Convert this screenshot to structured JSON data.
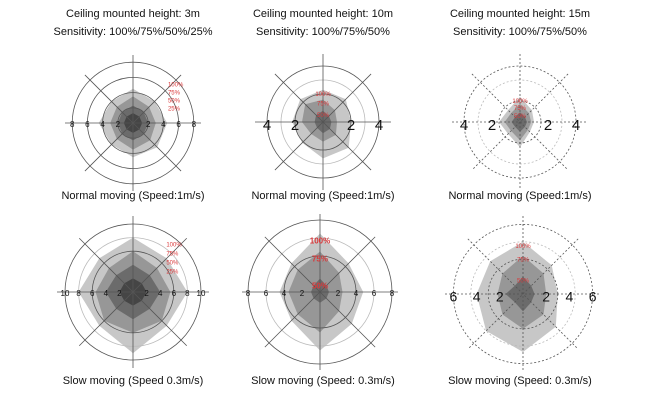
{
  "panels": [
    {
      "title": "Ceiling mounted height: 3m",
      "sensitivity": "Sensitivity: 100%/75%/50%/25%",
      "caption": "Normal moving (Speed:1m/s)",
      "ticks": [
        2,
        4,
        6,
        8
      ],
      "rings": [
        2,
        4,
        6,
        8
      ],
      "dotted": false,
      "labels_pos": "side",
      "levels": [
        {
          "label": "100%",
          "values": [
            4.5,
            4,
            4.5,
            4.5,
            4.5,
            4,
            4.5,
            4
          ]
        },
        {
          "label": "75%",
          "values": [
            3.5,
            3,
            3,
            3.2,
            3.5,
            3,
            3,
            3
          ]
        },
        {
          "label": "50%",
          "values": [
            2.3,
            2,
            2,
            2,
            2.3,
            2,
            2,
            2
          ]
        },
        {
          "label": "25%",
          "values": [
            1.3,
            1.2,
            1.2,
            1.2,
            1.3,
            1.2,
            1.2,
            1.2
          ]
        }
      ]
    },
    {
      "title": "Ceiling mounted height: 10m",
      "sensitivity": "Sensitivity: 100%/75%/50%",
      "caption": "Normal moving (Speed:1m/s)",
      "ticks": [
        2,
        4
      ],
      "rings": [
        2,
        3,
        4
      ],
      "dotted": false,
      "labels_pos": "axis",
      "levels": [
        {
          "label": "100%",
          "values": [
            2.3,
            2.3,
            2,
            2.6,
            2.6,
            2.1,
            2.2,
            2.3
          ]
        },
        {
          "label": "75%",
          "values": [
            1.6,
            1.2,
            1,
            1.3,
            1.4,
            1.2,
            1.5,
            1.8
          ]
        },
        {
          "label": "50%",
          "values": [
            0.8,
            0.6,
            0.6,
            0.7,
            0.8,
            0.6,
            0.6,
            0.7
          ]
        }
      ]
    },
    {
      "title": "Ceiling mounted height: 15m",
      "sensitivity": "Sensitivity: 100%/75%/50%",
      "caption": "Normal moving (Speed:1m/s)",
      "ticks": [
        2,
        4
      ],
      "rings": [
        1.5,
        3,
        4
      ],
      "dotted": true,
      "labels_pos": "axis",
      "levels": [
        {
          "label": "100%",
          "values": [
            1.8,
            1.2,
            1,
            1,
            1.8,
            1.2,
            1.5,
            1.2
          ]
        },
        {
          "label": "75%",
          "values": [
            1.3,
            0.9,
            0.8,
            0.8,
            1.3,
            0.9,
            1.1,
            0.9
          ]
        },
        {
          "label": "50%",
          "values": [
            0.7,
            0.5,
            0.5,
            0.5,
            0.7,
            0.5,
            0.6,
            0.5
          ]
        }
      ]
    },
    {
      "title": "",
      "sensitivity": "",
      "caption": "Slow moving (Speed 0.3m/s)",
      "ticks": [
        2,
        4,
        6,
        8,
        10
      ],
      "rings": [
        6,
        8,
        10
      ],
      "dotted": false,
      "labels_pos": "side",
      "levels": [
        {
          "label": "100%",
          "values": [
            8,
            7,
            8,
            7,
            9,
            7,
            8,
            7
          ]
        },
        {
          "label": "75%",
          "values": [
            6,
            5,
            5.5,
            6,
            6,
            6,
            5.5,
            5
          ]
        },
        {
          "label": "50%",
          "values": [
            4,
            3.5,
            4,
            3.5,
            4,
            3.5,
            4,
            3.5
          ]
        },
        {
          "label": "25%",
          "values": [
            2,
            1.8,
            2,
            1.8,
            2,
            1.8,
            2,
            1.8
          ]
        }
      ]
    },
    {
      "title": "",
      "sensitivity": "",
      "caption": "Slow moving (Speed: 0.3m/s)",
      "ticks": [
        2,
        4,
        6,
        8
      ],
      "rings": [
        4,
        6,
        8
      ],
      "dotted": false,
      "labels_pos": "axis",
      "levels": [
        {
          "label": "100%",
          "values": [
            6.5,
            4.5,
            4.8,
            5,
            6.5,
            4.5,
            4.5,
            4.5
          ]
        },
        {
          "label": "75%",
          "values": [
            4.5,
            3,
            2.5,
            3,
            4.5,
            3.5,
            3.5,
            3.5
          ]
        },
        {
          "label": "50%",
          "values": [
            1.5,
            1,
            1,
            1,
            1.2,
            1,
            1,
            1
          ]
        }
      ]
    },
    {
      "title": "",
      "sensitivity": "",
      "caption": "Slow moving (Speed: 0.3m/s)",
      "ticks": [
        2,
        4,
        6
      ],
      "rings": [
        3,
        4.5,
        6
      ],
      "dotted": true,
      "labels_pos": "axis",
      "levels": [
        {
          "label": "100%",
          "values": [
            4.5,
            3.5,
            3,
            4,
            5,
            4.5,
            4,
            4
          ]
        },
        {
          "label": "75%",
          "values": [
            3.3,
            2.5,
            2,
            2.5,
            3,
            2.5,
            2.2,
            2.5
          ]
        },
        {
          "label": "50%",
          "values": [
            1.5,
            1,
            1,
            1,
            1.5,
            1,
            1.5,
            1
          ]
        }
      ]
    }
  ],
  "colors": {
    "levels": [
      "#bdbdbd",
      "#8e8e8e",
      "#636363",
      "#3e3e3e"
    ],
    "pct_label": "#d9383a",
    "axis": "#555555"
  }
}
